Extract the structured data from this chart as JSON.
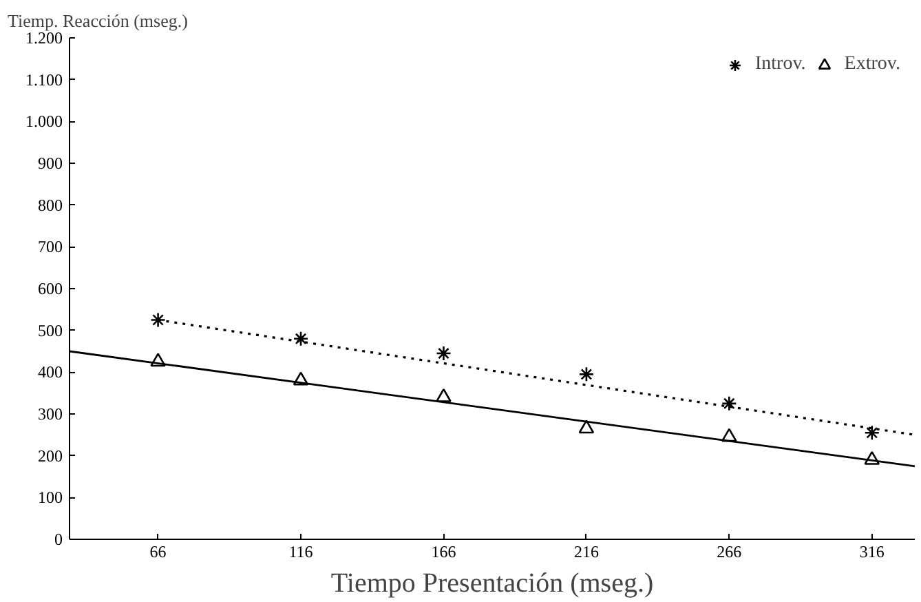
{
  "chart_data": {
    "type": "scatter",
    "ylabel": "Tiemp. Reacción (mseg.)",
    "xlabel": "Tiempo Presentación (mseg.)",
    "x": [
      66,
      116,
      166,
      216,
      266,
      316
    ],
    "series": [
      {
        "name": "Introv.",
        "color": "#000000",
        "marker": "cross",
        "values": [
          525,
          480,
          445,
          395,
          325,
          255
        ]
      },
      {
        "name": "Extrov.",
        "color": "#000000",
        "marker": "triangle",
        "values": [
          425,
          380,
          340,
          265,
          245,
          190
        ]
      },
      {
        "type": "line",
        "color": "#000000",
        "line_style": "dotted",
        "x": [
          66,
          331
        ],
        "values": [
          525,
          250
        ]
      },
      {
        "type": "line",
        "color": "#000000",
        "line_style": "solid",
        "x": [
          35,
          331
        ],
        "values": [
          450,
          175
        ]
      }
    ],
    "xlim": [
      35,
      331
    ],
    "xticks": [
      66,
      116,
      166,
      216,
      266,
      316
    ],
    "ylim": [
      0,
      1200
    ],
    "yticks": [
      0,
      100,
      200,
      300,
      400,
      500,
      600,
      700,
      800,
      900,
      {
        "value": 1000,
        "label": "1.000"
      },
      {
        "value": 1100,
        "label": "1.100"
      },
      {
        "value": 1200,
        "label": "1.200"
      }
    ],
    "grid": false,
    "legend": "top right"
  }
}
